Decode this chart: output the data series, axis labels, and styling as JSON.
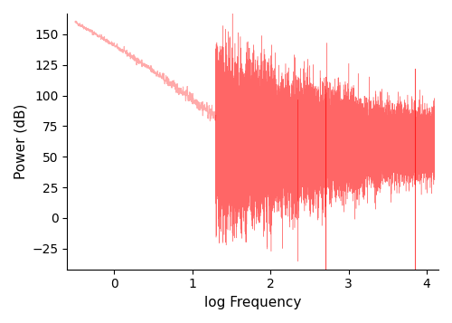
{
  "xlabel": "log Frequency",
  "ylabel": "Power (dB)",
  "xlim": [
    -0.6,
    4.15
  ],
  "ylim": [
    -42,
    167
  ],
  "yticks": [
    -25,
    0,
    25,
    50,
    75,
    100,
    125,
    150
  ],
  "xticks": [
    0,
    1,
    2,
    3,
    4
  ],
  "line_color_early": "#ffaaaa",
  "line_color_late": "#ff0000",
  "figsize": [
    5.0,
    3.57
  ],
  "dpi": 100,
  "seed": 42,
  "transition_logfreq": 1.3
}
